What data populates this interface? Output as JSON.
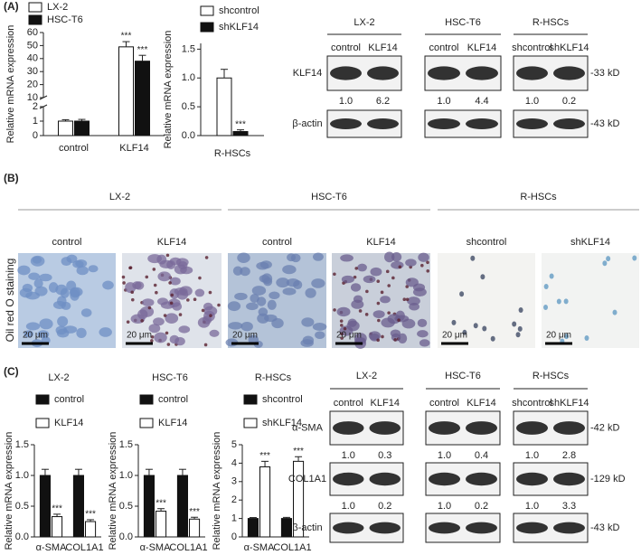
{
  "panels": [
    "(A)",
    "(B)",
    "(C)"
  ],
  "chart_data": [
    {
      "type": "bar",
      "ylabel": "Relative  mRNA expression",
      "categories": [
        "control",
        "KLF14"
      ],
      "series": [
        {
          "name": "LX-2",
          "color": "#ffffff",
          "values": [
            1.0,
            49
          ],
          "errors": [
            0.1,
            4
          ],
          "annotations": [
            null,
            "***"
          ]
        },
        {
          "name": "HSC-T6",
          "color": "#111111",
          "values": [
            1.0,
            38
          ],
          "errors": [
            0.12,
            4.5
          ],
          "annotations": [
            null,
            "***"
          ]
        }
      ],
      "ylim": [
        0,
        60
      ],
      "ybreak": [
        2,
        10
      ],
      "yticks": [
        0,
        1,
        2,
        10,
        20,
        30,
        40,
        50,
        60
      ]
    },
    {
      "type": "bar",
      "ylabel": "Relative mRNA expression",
      "categories": [
        "R-HSCs"
      ],
      "series": [
        {
          "name": "shcontrol",
          "color": "#ffffff",
          "values": [
            1.0
          ],
          "errors": [
            0.15
          ],
          "annotations": [
            null
          ]
        },
        {
          "name": "shKLF14",
          "color": "#111111",
          "values": [
            0.07
          ],
          "errors": [
            0.03
          ],
          "annotations": [
            "***"
          ]
        }
      ],
      "ylim": [
        0,
        1.6
      ],
      "yticks": [
        {
          "value": 0,
          "label": "0.0"
        },
        0.5,
        {
          "value": 1,
          "label": "1.0"
        },
        1.5
      ]
    },
    {
      "type": "bar",
      "title": "LX-2",
      "ylabel": "Relative  mRNA expression",
      "categories": [
        "α-SMA",
        "COL1A1"
      ],
      "series": [
        {
          "name": "control",
          "color": "#111111",
          "values": [
            1.0,
            1.0
          ],
          "errors": [
            0.1,
            0.1
          ],
          "annotations": [
            null,
            null
          ]
        },
        {
          "name": "KLF14",
          "color": "#ffffff",
          "values": [
            0.33,
            0.25
          ],
          "errors": [
            0.04,
            0.03
          ],
          "annotations": [
            "***",
            "***"
          ]
        }
      ],
      "ylim": [
        0,
        1.5
      ],
      "yticks": [
        {
          "value": 0,
          "label": "0.0"
        },
        0.5,
        {
          "value": 1,
          "label": "1.0"
        },
        1.5
      ]
    },
    {
      "type": "bar",
      "title": "HSC-T6",
      "ylabel": "Relative  mRNA expression",
      "categories": [
        "α-SMA",
        "COL1A1"
      ],
      "series": [
        {
          "name": "control",
          "color": "#111111",
          "values": [
            1.0,
            1.0
          ],
          "errors": [
            0.1,
            0.1
          ],
          "annotations": [
            null,
            null
          ]
        },
        {
          "name": "KLF14",
          "color": "#ffffff",
          "values": [
            0.42,
            0.29
          ],
          "errors": [
            0.04,
            0.03
          ],
          "annotations": [
            "***",
            "***"
          ]
        }
      ],
      "ylim": [
        0,
        1.5
      ],
      "yticks": [
        {
          "value": 0,
          "label": "0.0"
        },
        0.5,
        {
          "value": 1,
          "label": "1.0"
        },
        1.5
      ]
    },
    {
      "type": "bar",
      "title": "R-HSCs",
      "ylabel": "Relative  mRNA expression",
      "categories": [
        "α-SMA",
        "COL1A1"
      ],
      "series": [
        {
          "name": "shcontrol",
          "color": "#111111",
          "values": [
            1.0,
            1.0
          ],
          "errors": [
            0.05,
            0.06
          ],
          "annotations": [
            null,
            null
          ]
        },
        {
          "name": "shKLF14",
          "color": "#ffffff",
          "values": [
            3.8,
            4.1
          ],
          "errors": [
            0.3,
            0.25
          ],
          "annotations": [
            "***",
            "***"
          ]
        }
      ],
      "ylim": [
        0,
        5
      ],
      "yticks": [
        0,
        1,
        2,
        3,
        4,
        5
      ]
    }
  ],
  "blots": [
    {
      "groups": [
        {
          "name": "LX-2",
          "lanes": [
            "control",
            "KLF14"
          ]
        },
        {
          "name": "HSC-T6",
          "lanes": [
            "control",
            "KLF14"
          ]
        },
        {
          "name": "R-HSCs",
          "lanes": [
            "shcontrol",
            "shKLF14"
          ]
        }
      ],
      "rows": [
        {
          "name": "KLF14",
          "marker": "-33 kD",
          "quant": [
            [
              "1.0",
              "6.2"
            ],
            [
              "1.0",
              "4.4"
            ],
            [
              "1.0",
              "0.2"
            ]
          ]
        },
        {
          "name": "β-actin",
          "marker": "-43 kD"
        }
      ]
    },
    {
      "groups": [
        {
          "name": "LX-2",
          "lanes": [
            "control",
            "KLF14"
          ]
        },
        {
          "name": "HSC-T6",
          "lanes": [
            "control",
            "KLF14"
          ]
        },
        {
          "name": "R-HSCs",
          "lanes": [
            "shcontrol",
            "shKLF14"
          ]
        }
      ],
      "rows": [
        {
          "name": "α-SMA",
          "marker": "-42 kD",
          "quant": [
            [
              "1.0",
              "0.3"
            ],
            [
              "1.0",
              "0.4"
            ],
            [
              "1.0",
              "2.8"
            ]
          ]
        },
        {
          "name": "COL1A1",
          "marker": "-129 kD",
          "quant": [
            [
              "1.0",
              "0.2"
            ],
            [
              "1.0",
              "0.2"
            ],
            [
              "1.0",
              "3.3"
            ]
          ]
        },
        {
          "name": "β-actin",
          "marker": "-43 kD"
        }
      ]
    }
  ],
  "staining": {
    "ylabel": "Oil red O staining",
    "groups": [
      {
        "name": "LX-2",
        "images": [
          "control",
          "KLF14"
        ]
      },
      {
        "name": "HSC-T6",
        "images": [
          "control",
          "KLF14"
        ]
      },
      {
        "name": "R-HSCs",
        "images": [
          "shcontrol",
          "shKLF14"
        ]
      }
    ],
    "scale": "20 μm"
  }
}
